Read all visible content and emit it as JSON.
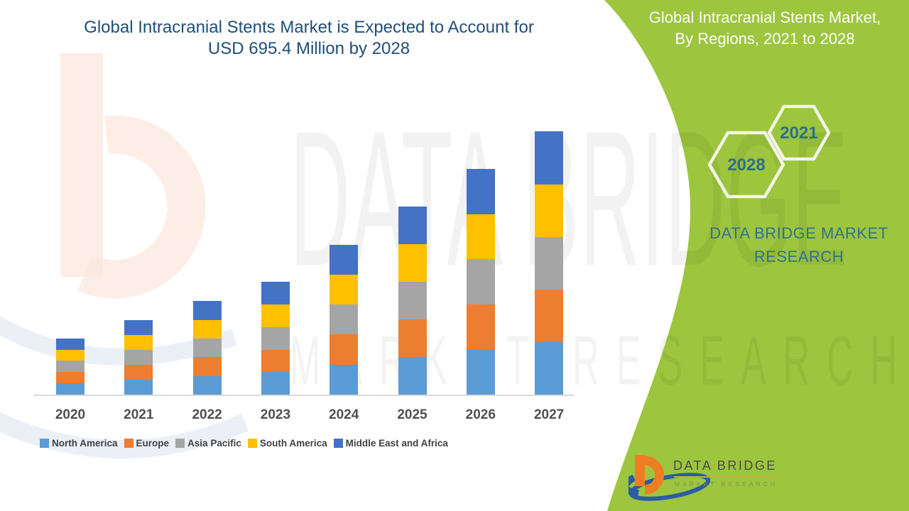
{
  "main_title": {
    "line1": "Global Intracranial Stents Market is Expected to Account for",
    "line2": "USD 695.4 Million by 2028"
  },
  "panel": {
    "bg_color": "#9DC53E",
    "title_line1": "Global Intracranial Stents Market,",
    "title_line2": "By Regions, 2021 to 2028",
    "hexagon_large_year": "2028",
    "hexagon_small_year": "2021",
    "brand_line1": "DATA BRIDGE MARKET",
    "brand_line2": "RESEARCH",
    "text_color": "#2E7390"
  },
  "logo": {
    "name": "DATA BRIDGE",
    "subtitle": "MARKET RESEARCH",
    "orange": "#EF7D24",
    "blue": "#2B5CA5"
  },
  "watermark": {
    "text1": "DATA BRIDGE",
    "text2": "MARKET RESEARCH"
  },
  "chart_data": {
    "type": "bar",
    "stacked": true,
    "title": "Global Intracranial Stents Market is Expected to Account for USD 695.4 Million by 2028",
    "xlabel": "",
    "ylabel": "",
    "units": "USD Million (estimated, no y-axis shown)",
    "ylim": [
      0,
      620
    ],
    "grid": false,
    "legend_position": "bottom",
    "axis": {
      "baseline_color": "#D9D9D9",
      "tick_label_color": "#4F4F4F"
    },
    "categories": [
      "2020",
      "2021",
      "2022",
      "2023",
      "2024",
      "2025",
      "2026",
      "2027"
    ],
    "series": [
      {
        "name": "North America",
        "color": "#5B9BD5",
        "values": [
          26,
          34.6,
          43.2,
          52,
          69.4,
          86.8,
          104.2,
          121.6
        ]
      },
      {
        "name": "Europe",
        "color": "#ED7D31",
        "values": [
          26,
          34.6,
          43.2,
          52,
          69.4,
          86.8,
          104.2,
          121.6
        ]
      },
      {
        "name": "Asia Pacific",
        "color": "#A5A5A5",
        "values": [
          26,
          34.6,
          43.2,
          52,
          69.4,
          86.8,
          104.2,
          121.6
        ]
      },
      {
        "name": "South America",
        "color": "#FFC000",
        "values": [
          26,
          34.6,
          43.2,
          52,
          69.4,
          86.8,
          104.2,
          121.6
        ]
      },
      {
        "name": "Middle East and Africa",
        "color": "#4472C4",
        "values": [
          26,
          34.6,
          43.2,
          52,
          69.4,
          86.8,
          104.2,
          121.6
        ]
      }
    ],
    "totals": [
      130,
      173,
      216,
      260,
      347,
      434,
      521,
      608
    ]
  }
}
